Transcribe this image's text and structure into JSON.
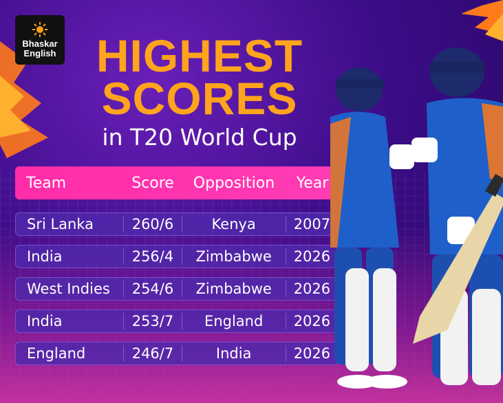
{
  "brand": {
    "line1": "Bhaskar",
    "line2": "English"
  },
  "title": {
    "line1": "HIGHEST",
    "line2": "SCORES",
    "subtitle": "in T20 World Cup"
  },
  "table": {
    "headers": [
      "Team",
      "Score",
      "Opposition",
      "Year"
    ],
    "rows": [
      [
        "Sri Lanka",
        "260/6",
        "Kenya",
        "2007"
      ],
      [
        "India",
        "256/4",
        "Zimbabwe",
        "2026"
      ],
      [
        "West Indies",
        "254/6",
        "Zimbabwe",
        "2026"
      ],
      [
        "India",
        "253/7",
        "England",
        "2026"
      ],
      [
        "England",
        "246/7",
        "India",
        "2026"
      ]
    ]
  },
  "colors": {
    "accent": "#ffa41c",
    "header": "#ff2da8",
    "background": "#3d0d8a",
    "row": "#50289a"
  }
}
